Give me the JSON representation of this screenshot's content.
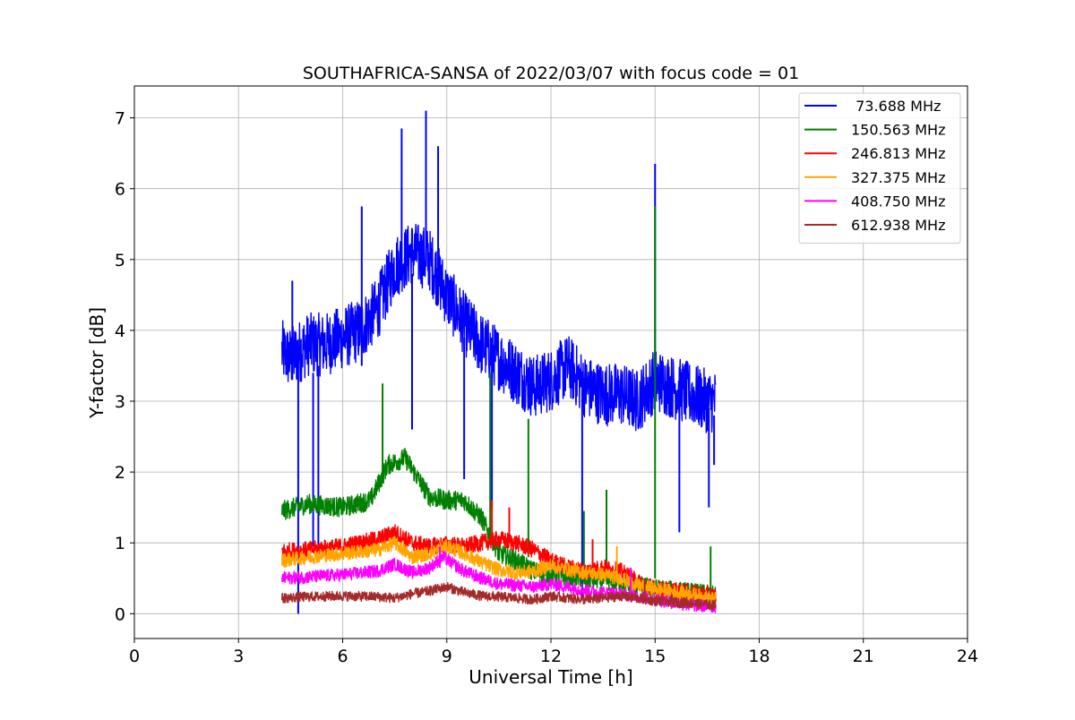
{
  "chart_data": {
    "type": "line",
    "title": "SOUTHAFRICA-SANSA of 2022/03/07 with focus code = 01",
    "xlabel": "Universal Time [h]",
    "ylabel": "Y-factor [dB]",
    "xlim": [
      0,
      24
    ],
    "ylim": [
      -0.35,
      7.45
    ],
    "xticks": [
      0,
      3,
      6,
      9,
      12,
      15,
      18,
      21,
      24
    ],
    "yticks": [
      0,
      1,
      2,
      3,
      4,
      5,
      6,
      7
    ],
    "grid": true,
    "legend_position": "top-right",
    "series": [
      {
        "name": " 73.688 MHz",
        "color": "#0000ff",
        "points": [
          [
            4.25,
            3.7
          ],
          [
            4.5,
            3.6
          ],
          [
            5.0,
            3.8
          ],
          [
            5.5,
            3.8
          ],
          [
            6.0,
            3.9
          ],
          [
            6.5,
            4.0
          ],
          [
            7.0,
            4.3
          ],
          [
            7.5,
            4.9
          ],
          [
            8.0,
            5.1
          ],
          [
            8.5,
            5.0
          ],
          [
            9.0,
            4.5
          ],
          [
            9.5,
            4.1
          ],
          [
            10.0,
            3.8
          ],
          [
            10.5,
            3.6
          ],
          [
            11.0,
            3.4
          ],
          [
            11.5,
            3.2
          ],
          [
            12.0,
            3.3
          ],
          [
            12.5,
            3.5
          ],
          [
            13.0,
            3.2
          ],
          [
            13.5,
            3.1
          ],
          [
            14.0,
            3.1
          ],
          [
            14.5,
            3.0
          ],
          [
            15.0,
            3.3
          ],
          [
            15.5,
            3.2
          ],
          [
            16.0,
            3.1
          ],
          [
            16.5,
            3.0
          ],
          [
            16.75,
            3.0
          ]
        ],
        "noise": 0.45,
        "spikes": [
          [
            4.55,
            3.3,
            4.7
          ],
          [
            4.72,
            3.5,
            0.0
          ],
          [
            5.15,
            3.4,
            0.95
          ],
          [
            5.3,
            3.5,
            0.8
          ],
          [
            6.55,
            3.5,
            5.75
          ],
          [
            7.7,
            4.7,
            6.85
          ],
          [
            8.0,
            4.8,
            2.6
          ],
          [
            8.4,
            4.9,
            7.1
          ],
          [
            8.75,
            4.6,
            6.6
          ],
          [
            9.5,
            3.9,
            1.9
          ],
          [
            10.3,
            3.5,
            1.5
          ],
          [
            12.9,
            3.3,
            0.2
          ],
          [
            15.0,
            3.6,
            6.35
          ],
          [
            15.7,
            3.1,
            1.15
          ],
          [
            16.55,
            2.9,
            1.5
          ],
          [
            16.7,
            2.8,
            2.1
          ]
        ]
      },
      {
        "name": "150.563 MHz",
        "color": "#008000",
        "points": [
          [
            4.25,
            1.45
          ],
          [
            5.0,
            1.55
          ],
          [
            6.0,
            1.5
          ],
          [
            6.8,
            1.6
          ],
          [
            7.3,
            2.1
          ],
          [
            7.8,
            2.2
          ],
          [
            8.5,
            1.65
          ],
          [
            9.0,
            1.6
          ],
          [
            9.5,
            1.6
          ],
          [
            10.0,
            1.35
          ],
          [
            10.5,
            0.85
          ],
          [
            11.0,
            0.75
          ],
          [
            11.5,
            0.6
          ],
          [
            12.0,
            0.55
          ],
          [
            13.0,
            0.5
          ],
          [
            14.0,
            0.45
          ],
          [
            14.5,
            0.4
          ],
          [
            15.0,
            0.35
          ],
          [
            16.0,
            0.3
          ],
          [
            16.75,
            0.25
          ]
        ],
        "noise": 0.14,
        "spikes": [
          [
            7.15,
            2.0,
            3.25
          ],
          [
            10.25,
            1.1,
            3.4
          ],
          [
            11.35,
            0.8,
            2.75
          ],
          [
            12.95,
            0.5,
            1.45
          ],
          [
            13.6,
            0.6,
            1.75
          ],
          [
            15.0,
            0.5,
            5.75
          ],
          [
            16.6,
            0.3,
            0.95
          ]
        ]
      },
      {
        "name": "246.813 MHz",
        "color": "#ff0000",
        "points": [
          [
            4.25,
            0.88
          ],
          [
            5.0,
            0.9
          ],
          [
            6.0,
            0.95
          ],
          [
            7.0,
            1.05
          ],
          [
            7.5,
            1.15
          ],
          [
            8.0,
            1.0
          ],
          [
            8.5,
            0.95
          ],
          [
            9.0,
            0.98
          ],
          [
            9.5,
            0.95
          ],
          [
            10.0,
            1.0
          ],
          [
            10.5,
            1.05
          ],
          [
            11.0,
            1.0
          ],
          [
            11.5,
            0.9
          ],
          [
            12.0,
            0.75
          ],
          [
            12.5,
            0.65
          ],
          [
            13.0,
            0.6
          ],
          [
            13.5,
            0.65
          ],
          [
            14.0,
            0.6
          ],
          [
            14.5,
            0.45
          ],
          [
            15.0,
            0.35
          ],
          [
            16.0,
            0.3
          ],
          [
            16.75,
            0.25
          ]
        ],
        "noise": 0.12,
        "spikes": [
          [
            10.3,
            1.0,
            1.6
          ],
          [
            10.8,
            1.0,
            1.5
          ],
          [
            13.2,
            0.6,
            1.05
          ]
        ]
      },
      {
        "name": "327.375 MHz",
        "color": "#ffa500",
        "points": [
          [
            4.25,
            0.75
          ],
          [
            5.0,
            0.8
          ],
          [
            6.0,
            0.85
          ],
          [
            7.0,
            0.9
          ],
          [
            7.5,
            1.0
          ],
          [
            8.0,
            0.8
          ],
          [
            8.5,
            0.85
          ],
          [
            9.0,
            0.95
          ],
          [
            9.5,
            0.85
          ],
          [
            10.0,
            0.72
          ],
          [
            10.5,
            0.62
          ],
          [
            11.0,
            0.58
          ],
          [
            11.5,
            0.6
          ],
          [
            12.0,
            0.68
          ],
          [
            12.5,
            0.62
          ],
          [
            13.0,
            0.58
          ],
          [
            13.5,
            0.55
          ],
          [
            14.0,
            0.5
          ],
          [
            14.5,
            0.4
          ],
          [
            15.0,
            0.35
          ],
          [
            16.0,
            0.28
          ],
          [
            16.75,
            0.2
          ]
        ],
        "noise": 0.1,
        "spikes": [
          [
            13.9,
            0.55,
            0.95
          ]
        ]
      },
      {
        "name": "408.750 MHz",
        "color": "#ff00ff",
        "points": [
          [
            4.25,
            0.5
          ],
          [
            5.0,
            0.52
          ],
          [
            6.0,
            0.55
          ],
          [
            7.0,
            0.6
          ],
          [
            7.5,
            0.7
          ],
          [
            8.0,
            0.58
          ],
          [
            8.5,
            0.65
          ],
          [
            8.9,
            0.8
          ],
          [
            9.5,
            0.6
          ],
          [
            10.0,
            0.5
          ],
          [
            10.5,
            0.42
          ],
          [
            11.0,
            0.4
          ],
          [
            11.5,
            0.38
          ],
          [
            12.0,
            0.42
          ],
          [
            12.5,
            0.38
          ],
          [
            13.0,
            0.33
          ],
          [
            13.5,
            0.3
          ],
          [
            14.0,
            0.28
          ],
          [
            15.0,
            0.2
          ],
          [
            16.0,
            0.12
          ],
          [
            16.75,
            0.1
          ]
        ],
        "noise": 0.09,
        "spikes": [
          [
            8.8,
            0.65,
            0.95
          ],
          [
            14.3,
            0.3,
            0.65
          ]
        ]
      },
      {
        "name": "612.938 MHz",
        "color": "#a52a2a",
        "points": [
          [
            4.25,
            0.22
          ],
          [
            5.0,
            0.24
          ],
          [
            6.0,
            0.25
          ],
          [
            7.0,
            0.24
          ],
          [
            7.5,
            0.22
          ],
          [
            8.0,
            0.28
          ],
          [
            8.5,
            0.32
          ],
          [
            9.0,
            0.38
          ],
          [
            9.5,
            0.3
          ],
          [
            10.0,
            0.25
          ],
          [
            10.5,
            0.24
          ],
          [
            11.0,
            0.22
          ],
          [
            11.5,
            0.2
          ],
          [
            12.0,
            0.25
          ],
          [
            12.5,
            0.22
          ],
          [
            13.0,
            0.2
          ],
          [
            13.5,
            0.22
          ],
          [
            14.0,
            0.25
          ],
          [
            14.5,
            0.22
          ],
          [
            15.0,
            0.18
          ],
          [
            16.0,
            0.15
          ],
          [
            16.75,
            0.12
          ]
        ],
        "noise": 0.07,
        "spikes": [
          [
            14.7,
            0.2,
            0.5
          ]
        ]
      }
    ]
  }
}
